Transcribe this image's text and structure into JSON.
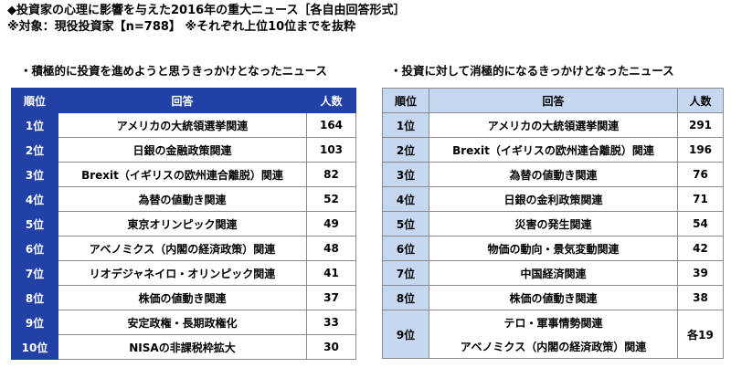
{
  "title": "◆投資家の心理に影響を与えた2016年の重大ニュース［各自由回答形式］",
  "subtitle": "※対象：現役投資家【n=788】 ※それぞれ上位10位までを抜粋",
  "colors": {
    "left_header": "#2141a6",
    "right_header": "#c5d8ef"
  },
  "left": {
    "section_title": "・積極的に投資を進めようと思うきっかけとなったニュース",
    "headers": {
      "rank": "順位",
      "answer": "回答",
      "count": "人数"
    },
    "rows": [
      {
        "rank": "1位",
        "answer": "アメリカの大統領選挙関連",
        "count": "164"
      },
      {
        "rank": "2位",
        "answer": "日銀の金融政策関連",
        "count": "103"
      },
      {
        "rank": "3位",
        "answer": "Brexit（イギリスの欧州連合離脱）関連",
        "count": "82"
      },
      {
        "rank": "4位",
        "answer": "為替の値動き関連",
        "count": "52"
      },
      {
        "rank": "5位",
        "answer": "東京オリンピック関連",
        "count": "49"
      },
      {
        "rank": "6位",
        "answer": "アベノミクス（内閣の経済政策）関連",
        "count": "48"
      },
      {
        "rank": "7位",
        "answer": "リオデジャネイロ・オリンピック関連",
        "count": "41"
      },
      {
        "rank": "8位",
        "answer": "株価の値動き関連",
        "count": "37"
      },
      {
        "rank": "9位",
        "answer": "安定政権・長期政権化",
        "count": "33"
      },
      {
        "rank": "10位",
        "answer": "NISAの非課税枠拡大",
        "count": "30"
      }
    ]
  },
  "right": {
    "section_title": "・投資に対して消極的になるきっかけとなったニュース",
    "headers": {
      "rank": "順位",
      "answer": "回答",
      "count": "人数"
    },
    "rows": [
      {
        "rank": "1位",
        "answer": "アメリカの大統領選挙関連",
        "count": "291"
      },
      {
        "rank": "2位",
        "answer": "Brexit（イギリスの欧州連合離脱）関連",
        "count": "196"
      },
      {
        "rank": "3位",
        "answer": "為替の値動き関連",
        "count": "76"
      },
      {
        "rank": "4位",
        "answer": "日銀の金利政策関連",
        "count": "71"
      },
      {
        "rank": "5位",
        "answer": "災害の発生関連",
        "count": "54"
      },
      {
        "rank": "6位",
        "answer": "物価の動向・景気変動関連",
        "count": "42"
      },
      {
        "rank": "7位",
        "answer": "中国経済関連",
        "count": "39"
      },
      {
        "rank": "8位",
        "answer": "株価の値動き関連",
        "count": "38"
      }
    ],
    "row9": {
      "rank": "9位",
      "answer_a": "テロ・軍事情勢関連",
      "answer_b": "アベノミクス（内閣の経済政策）関連",
      "count": "各19"
    }
  }
}
